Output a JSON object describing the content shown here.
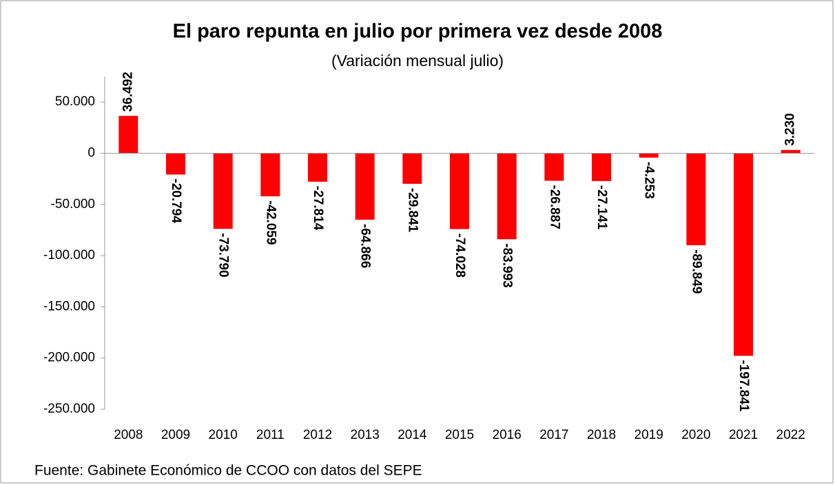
{
  "chart_data": {
    "type": "bar",
    "title": "El paro repunta en julio por primera vez desde 2008",
    "subtitle": "(Variación mensual julio)",
    "source": "Fuente: Gabinete Económico de CCOO con datos del SEPE",
    "categories": [
      "2008",
      "2009",
      "2010",
      "2011",
      "2012",
      "2013",
      "2014",
      "2015",
      "2016",
      "2017",
      "2018",
      "2019",
      "2020",
      "2021",
      "2022"
    ],
    "values": [
      36492,
      -20794,
      -73790,
      -42059,
      -27814,
      -64866,
      -29841,
      -74028,
      -83993,
      -26887,
      -27141,
      -4253,
      -89849,
      -197841,
      3230
    ],
    "value_labels": [
      "36.492",
      "-20.794",
      "-73.790",
      "-42.059",
      "-27.814",
      "-64.866",
      "-29.841",
      "-74.028",
      "-83.993",
      "-26.887",
      "-27.141",
      "-4.253",
      "-89.849",
      "-197.841",
      "3.230"
    ],
    "color": "#ff0000",
    "ylim": [
      -250000,
      75000
    ],
    "yticks": [
      {
        "value": -250000,
        "label": "-250.000"
      },
      {
        "value": -200000,
        "label": "-200.000"
      },
      {
        "value": -150000,
        "label": "-150.000"
      },
      {
        "value": -100000,
        "label": "-100.000"
      },
      {
        "value": -50000,
        "label": "-50.000"
      },
      0,
      {
        "value": 50000,
        "label": "50.000"
      }
    ],
    "grid": false
  }
}
